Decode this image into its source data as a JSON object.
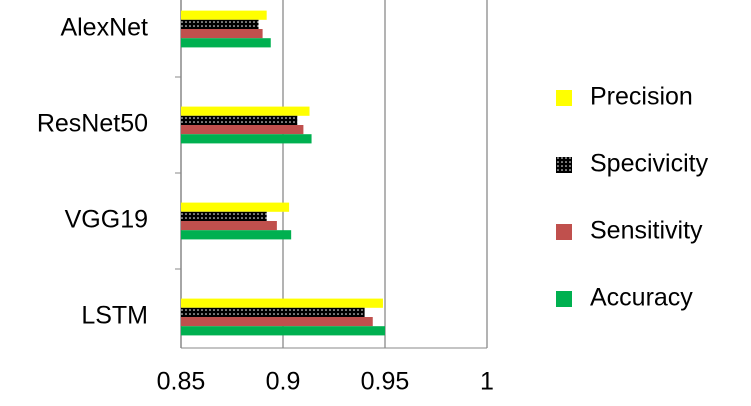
{
  "chart_data": {
    "type": "hbar",
    "categories": [
      "AlexNet",
      "ResNet50",
      "VGG19",
      "LSTM"
    ],
    "series": [
      {
        "name": "Precision",
        "color": "#ffff00",
        "values": [
          0.892,
          0.913,
          0.903,
          0.949
        ]
      },
      {
        "name": "Specivicity",
        "color": "#000000",
        "values": [
          0.888,
          0.907,
          0.892,
          0.94
        ]
      },
      {
        "name": "Sensitivity",
        "color": "#c0504d",
        "values": [
          0.89,
          0.91,
          0.897,
          0.944
        ]
      },
      {
        "name": "Accuracy",
        "color": "#00b050",
        "values": [
          0.894,
          0.914,
          0.904,
          0.95
        ]
      }
    ],
    "xlim": [
      0.85,
      1
    ],
    "xticks": [
      0.85,
      0.9,
      0.95,
      1
    ],
    "grid": true,
    "legend": "right"
  }
}
